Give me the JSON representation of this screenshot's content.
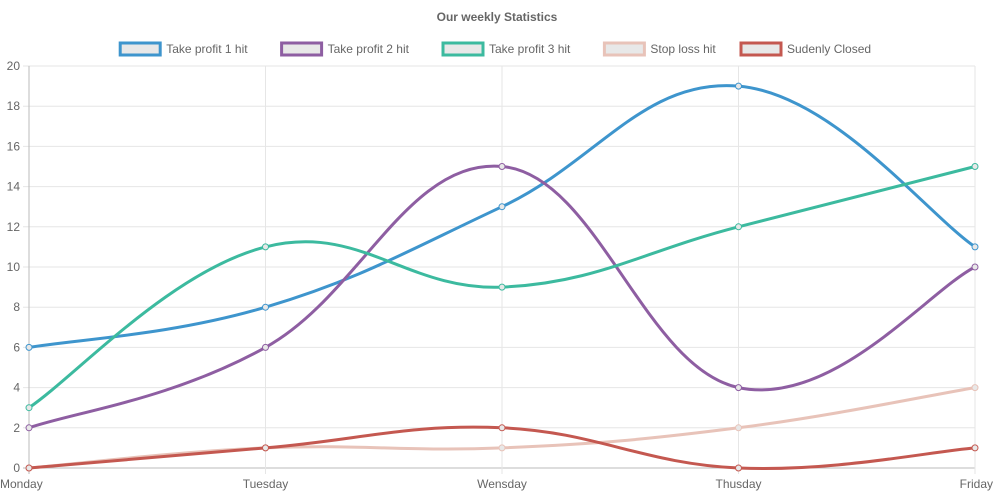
{
  "chart_data": {
    "type": "line",
    "title": "Our weekly Statistics",
    "categories": [
      "Monday",
      "Tuesday",
      "Wensday",
      "Thusday",
      "Friday"
    ],
    "ylim": [
      0,
      20
    ],
    "yticks": [
      0,
      2,
      4,
      6,
      8,
      10,
      12,
      14,
      16,
      18,
      20
    ],
    "grid": true,
    "legend_position": "top",
    "series": [
      {
        "name": "Take profit 1 hit",
        "color": "#3e95cd",
        "values": [
          6,
          8,
          13,
          19,
          11
        ]
      },
      {
        "name": "Take profit 2 hit",
        "color": "#8e5ea2",
        "values": [
          2,
          6,
          15,
          4,
          10
        ]
      },
      {
        "name": "Take profit 3 hit",
        "color": "#3cba9f",
        "values": [
          3,
          11,
          9,
          12,
          15
        ]
      },
      {
        "name": "Stop loss hit",
        "color": "#e8c3b9",
        "values": [
          0,
          1,
          1,
          2,
          4
        ]
      },
      {
        "name": "Sudenly Closed",
        "color": "#c45850",
        "values": [
          0,
          1,
          2,
          0,
          1
        ]
      }
    ]
  }
}
